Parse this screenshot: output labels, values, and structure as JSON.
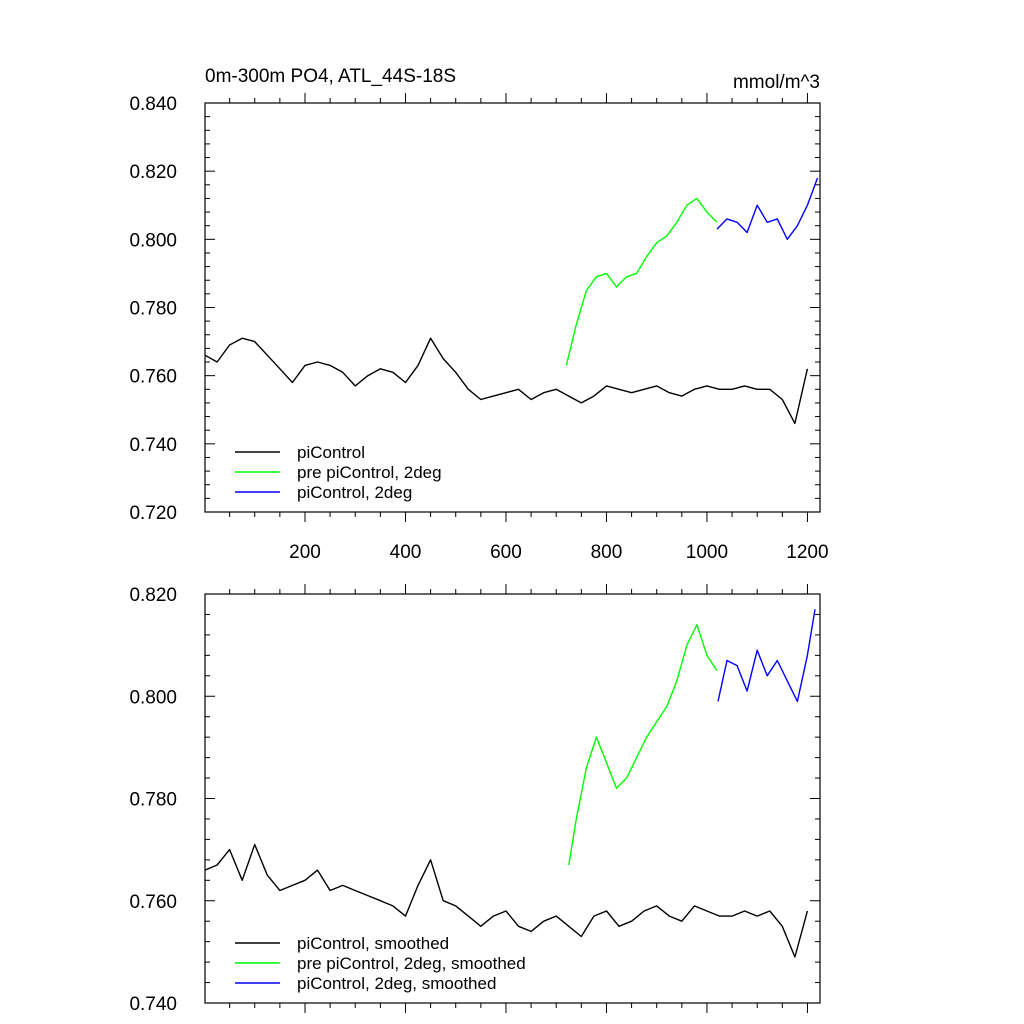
{
  "chart_data": [
    {
      "type": "line",
      "title": "0m-300m PO4, ATL_44S-18S",
      "units": "mmol/m^3",
      "xlabel": "",
      "ylabel": "",
      "xlim": [
        1,
        1225
      ],
      "ylim": [
        0.72,
        0.84
      ],
      "xticks": [
        200,
        400,
        600,
        800,
        1000,
        1200
      ],
      "xtick_labels": [
        "200",
        "400",
        "600",
        "800",
        "1000",
        "1200"
      ],
      "yticks": [
        0.72,
        0.74,
        0.76,
        0.78,
        0.8,
        0.82,
        0.84
      ],
      "ytick_labels": [
        "0.720",
        "0.740",
        "0.760",
        "0.780",
        "0.800",
        "0.820",
        "0.840"
      ],
      "legend_position": "bottom-left",
      "series": [
        {
          "name": "piControl",
          "color": "#000000",
          "x": [
            1,
            25,
            50,
            75,
            100,
            125,
            150,
            175,
            200,
            225,
            250,
            275,
            300,
            325,
            350,
            375,
            400,
            425,
            450,
            475,
            500,
            525,
            550,
            575,
            600,
            625,
            650,
            675,
            700,
            725,
            750,
            775,
            800,
            825,
            850,
            875,
            900,
            925,
            950,
            975,
            1000,
            1025,
            1050,
            1075,
            1100,
            1125,
            1150,
            1175,
            1200
          ],
          "y": [
            0.766,
            0.764,
            0.769,
            0.771,
            0.77,
            0.766,
            0.762,
            0.758,
            0.763,
            0.764,
            0.763,
            0.761,
            0.757,
            0.76,
            0.762,
            0.761,
            0.758,
            0.763,
            0.771,
            0.765,
            0.761,
            0.756,
            0.753,
            0.754,
            0.755,
            0.756,
            0.753,
            0.755,
            0.756,
            0.754,
            0.752,
            0.754,
            0.757,
            0.756,
            0.755,
            0.756,
            0.757,
            0.755,
            0.754,
            0.756,
            0.757,
            0.756,
            0.756,
            0.757,
            0.756,
            0.756,
            0.753,
            0.746,
            0.762
          ]
        },
        {
          "name": "pre piControl, 2deg",
          "color": "#00ff00",
          "x": [
            720,
            740,
            760,
            780,
            800,
            820,
            840,
            860,
            880,
            900,
            920,
            940,
            960,
            980,
            1000,
            1020
          ],
          "y": [
            0.763,
            0.775,
            0.785,
            0.789,
            0.79,
            0.786,
            0.789,
            0.79,
            0.795,
            0.799,
            0.801,
            0.805,
            0.81,
            0.812,
            0.808,
            0.805
          ]
        },
        {
          "name": "piControl, 2deg",
          "color": "#0000ff",
          "x": [
            1020,
            1040,
            1060,
            1080,
            1100,
            1120,
            1140,
            1160,
            1180,
            1200,
            1220
          ],
          "y": [
            0.803,
            0.806,
            0.805,
            0.802,
            0.81,
            0.805,
            0.806,
            0.8,
            0.804,
            0.81,
            0.818
          ]
        }
      ]
    },
    {
      "type": "line",
      "title": "",
      "xlabel": "",
      "ylabel": "",
      "xlim": [
        1,
        1225
      ],
      "ylim": [
        0.74,
        0.82
      ],
      "xticks": [
        200,
        400,
        600,
        800,
        1000,
        1200
      ],
      "yticks": [
        0.74,
        0.76,
        0.78,
        0.8,
        0.82
      ],
      "ytick_labels": [
        "0.740",
        "0.760",
        "0.780",
        "0.800",
        "0.820"
      ],
      "legend_position": "bottom-left",
      "series": [
        {
          "name": "piControl, smoothed",
          "color": "#000000",
          "x": [
            1,
            25,
            50,
            75,
            100,
            125,
            150,
            175,
            200,
            225,
            250,
            275,
            300,
            325,
            350,
            375,
            400,
            425,
            450,
            475,
            500,
            525,
            550,
            575,
            600,
            625,
            650,
            675,
            700,
            725,
            750,
            775,
            800,
            825,
            850,
            875,
            900,
            925,
            950,
            975,
            1000,
            1025,
            1050,
            1075,
            1100,
            1125,
            1150,
            1175,
            1200
          ],
          "y": [
            0.766,
            0.767,
            0.77,
            0.764,
            0.771,
            0.765,
            0.762,
            0.763,
            0.764,
            0.766,
            0.762,
            0.763,
            0.762,
            0.761,
            0.76,
            0.759,
            0.757,
            0.763,
            0.768,
            0.76,
            0.759,
            0.757,
            0.755,
            0.757,
            0.758,
            0.755,
            0.754,
            0.756,
            0.757,
            0.755,
            0.753,
            0.757,
            0.758,
            0.755,
            0.756,
            0.758,
            0.759,
            0.757,
            0.756,
            0.759,
            0.758,
            0.757,
            0.757,
            0.758,
            0.757,
            0.758,
            0.755,
            0.749,
            0.758
          ]
        },
        {
          "name": "pre piControl, 2deg, smoothed",
          "color": "#00ff00",
          "x": [
            725,
            740,
            760,
            780,
            800,
            820,
            840,
            860,
            880,
            900,
            920,
            940,
            960,
            980,
            1000,
            1020
          ],
          "y": [
            0.767,
            0.776,
            0.786,
            0.792,
            0.787,
            0.782,
            0.784,
            0.788,
            0.792,
            0.795,
            0.798,
            0.803,
            0.81,
            0.814,
            0.808,
            0.805
          ]
        },
        {
          "name": "piControl, 2deg, smoothed",
          "color": "#0000ff",
          "x": [
            1022,
            1040,
            1060,
            1080,
            1100,
            1120,
            1140,
            1160,
            1180,
            1200,
            1215
          ],
          "y": [
            0.799,
            0.807,
            0.806,
            0.801,
            0.809,
            0.804,
            0.807,
            0.803,
            0.799,
            0.808,
            0.817
          ]
        }
      ]
    }
  ]
}
